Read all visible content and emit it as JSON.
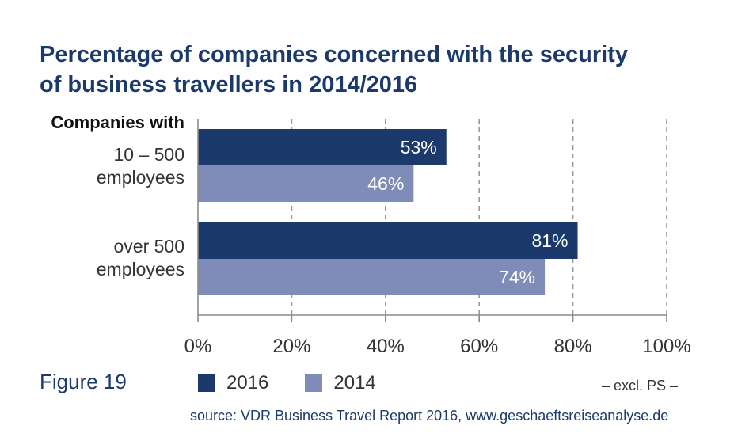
{
  "title_lines": [
    "Percentage of companies concerned with the security",
    "of business travellers in 2014/2016"
  ],
  "figure_label": "Figure 19",
  "note": "– excl. PS –",
  "source": "source: VDR Business Travel Report 2016, www.geschaeftsreiseanalyse.de",
  "colors": {
    "title": "#1b3a6b",
    "s2016": "#1b3a6b",
    "s2014": "#7f8cb7"
  },
  "chart_data": {
    "type": "bar",
    "orientation": "horizontal",
    "category_header": "Companies with",
    "categories": [
      [
        "10 – 500",
        "employees"
      ],
      [
        "over 500",
        "employees"
      ]
    ],
    "series": [
      {
        "name": "2016",
        "values": [
          53,
          81
        ],
        "labels": [
          "53%",
          "81%"
        ]
      },
      {
        "name": "2014",
        "values": [
          46,
          74
        ],
        "labels": [
          "46%",
          "74%"
        ]
      }
    ],
    "xlim": [
      0,
      100
    ],
    "xticks": [
      0,
      20,
      40,
      60,
      80,
      100
    ],
    "xtick_labels": [
      "0%",
      "20%",
      "40%",
      "60%",
      "80%",
      "100%"
    ],
    "grid": true,
    "legend_position": "bottom"
  }
}
